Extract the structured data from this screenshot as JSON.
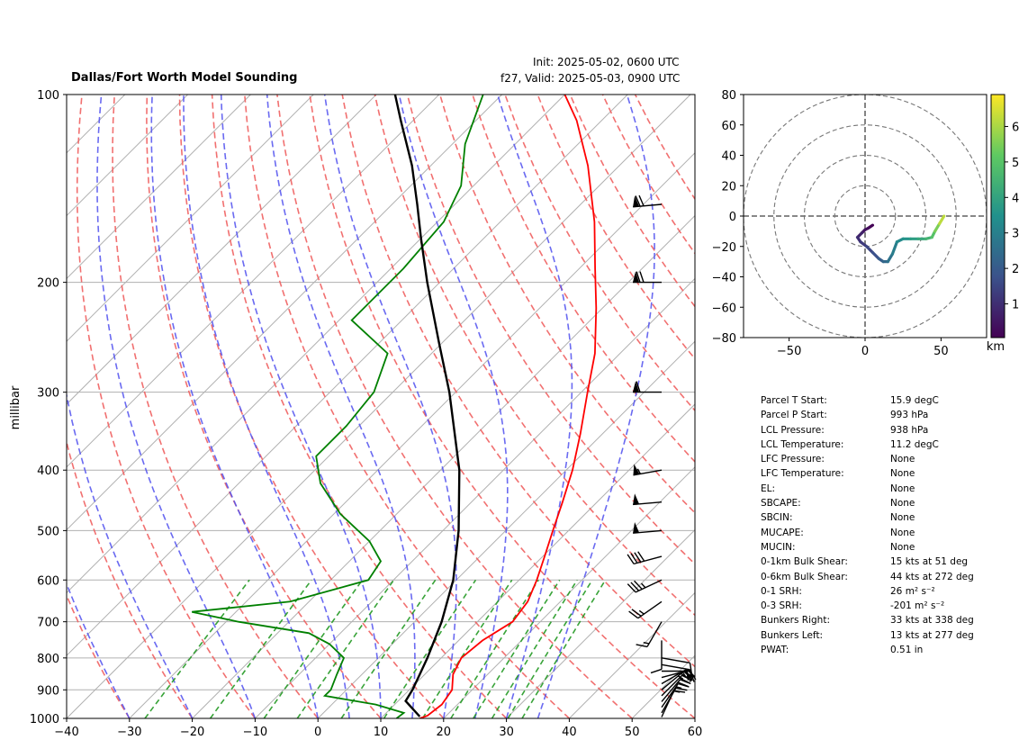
{
  "title": "Dallas/Fort Worth Model Sounding",
  "init": "Init: 2025-05-02, 0600 UTC",
  "valid": "f27, Valid: 2025-05-03, 0900 UTC",
  "params": [
    {
      "label": "Parcel T Start:",
      "value": "15.9 degC"
    },
    {
      "label": "Parcel P Start:",
      "value": "993 hPa"
    },
    {
      "label": "LCL Pressure:",
      "value": "938 hPa"
    },
    {
      "label": "LCL Temperature:",
      "value": "11.2 degC"
    },
    {
      "label": "LFC Pressure:",
      "value": "None"
    },
    {
      "label": "LFC Temperature:",
      "value": "None"
    },
    {
      "label": "EL:",
      "value": "None"
    },
    {
      "label": "SBCAPE:",
      "value": "None"
    },
    {
      "label": "SBCIN:",
      "value": "None"
    },
    {
      "label": "MUCAPE:",
      "value": "None"
    },
    {
      "label": "MUCIN:",
      "value": "None"
    },
    {
      "label": "0-1km Bulk Shear:",
      "value": "15 kts at 51 deg"
    },
    {
      "label": "0-6km Bulk Shear:",
      "value": "44 kts at 272 deg"
    },
    {
      "label": "0-1 SRH:",
      "value": "26 m² s⁻²"
    },
    {
      "label": "0-3 SRH:",
      "value": "-201 m² s⁻²"
    },
    {
      "label": "Bunkers Right:",
      "value": "33 kts at 338 deg"
    },
    {
      "label": "Bunkers Left:",
      "value": "13 kts at 277 deg"
    },
    {
      "label": "PWAT:",
      "value": "0.51 in"
    }
  ],
  "chart_data": [
    {
      "type": "line",
      "subtype": "skew-t",
      "ylabel": "millibar",
      "xlabel": "",
      "xlim": [
        -40,
        60
      ],
      "ylim": [
        1000,
        100
      ],
      "y_scale": "log",
      "xticks": [
        "−40",
        "−30",
        "−20",
        "−10",
        "0",
        "10",
        "20",
        "30",
        "40",
        "50",
        "60"
      ],
      "yticks": [
        "1000",
        "900",
        "800",
        "700",
        "600",
        "500",
        "400",
        "300",
        "200",
        "100"
      ],
      "grid": true,
      "series": [
        {
          "color": "#ff0000",
          "points": [
            [
              1000,
              16.2
            ],
            [
              990,
              17.0
            ],
            [
              950,
              17.5
            ],
            [
              900,
              16.8
            ],
            [
              850,
              14.5
            ],
            [
              800,
              13.2
            ],
            [
              750,
              13.8
            ],
            [
              700,
              15.6
            ],
            [
              650,
              14.8
            ],
            [
              600,
              12.8
            ],
            [
              550,
              10.3
            ],
            [
              500,
              7.5
            ],
            [
              450,
              4.5
            ],
            [
              400,
              1.0
            ],
            [
              350,
              -3.5
            ],
            [
              300,
              -9.0
            ],
            [
              260,
              -14.0
            ],
            [
              220,
              -21.0
            ],
            [
              190,
              -27.5
            ],
            [
              160,
              -35.0
            ],
            [
              130,
              -45.0
            ],
            [
              110,
              -54.0
            ],
            [
              100,
              -60.0
            ]
          ]
        },
        {
          "color": "#008000",
          "points": [
            [
              1000,
              12.5
            ],
            [
              980,
              12.8
            ],
            [
              950,
              7.0
            ],
            [
              920,
              -2.5
            ],
            [
              900,
              -2.5
            ],
            [
              850,
              -4.0
            ],
            [
              800,
              -5.5
            ],
            [
              760,
              -10.0
            ],
            [
              730,
              -15.0
            ],
            [
              700,
              -28.0
            ],
            [
              675,
              -37.0
            ],
            [
              650,
              -23.0
            ],
            [
              600,
              -14.0
            ],
            [
              560,
              -15.0
            ],
            [
              520,
              -20.0
            ],
            [
              470,
              -29.0
            ],
            [
              420,
              -37.0
            ],
            [
              380,
              -42.0
            ],
            [
              340,
              -42.0
            ],
            [
              300,
              -43.0
            ],
            [
              260,
              -47.0
            ],
            [
              230,
              -58.0
            ],
            [
              190,
              -58.0
            ],
            [
              160,
              -59.0
            ],
            [
              140,
              -62.0
            ],
            [
              120,
              -68.0
            ],
            [
              100,
              -73.0
            ]
          ]
        },
        {
          "color": "#000000",
          "points": [
            [
              993,
              15.9
            ],
            [
              938,
              11.2
            ],
            [
              900,
              10.5
            ],
            [
              850,
              9.2
            ],
            [
              800,
              7.8
            ],
            [
              700,
              4.3
            ],
            [
              600,
              -0.5
            ],
            [
              500,
              -7.5
            ],
            [
              400,
              -17.0
            ],
            [
              300,
              -31.0
            ],
            [
              250,
              -40.5
            ],
            [
              200,
              -52.0
            ],
            [
              170,
              -60.0
            ],
            [
              150,
              -66.0
            ],
            [
              130,
              -73.0
            ],
            [
              110,
              -82.0
            ],
            [
              100,
              -87.0
            ]
          ]
        }
      ],
      "wind_barbs": [
        {
          "p": 995,
          "speed": 10,
          "dir": 25
        },
        {
          "p": 980,
          "speed": 15,
          "dir": 30
        },
        {
          "p": 960,
          "speed": 15,
          "dir": 35
        },
        {
          "p": 940,
          "speed": 20,
          "dir": 40
        },
        {
          "p": 920,
          "speed": 20,
          "dir": 45
        },
        {
          "p": 900,
          "speed": 25,
          "dir": 50
        },
        {
          "p": 880,
          "speed": 25,
          "dir": 60
        },
        {
          "p": 860,
          "speed": 25,
          "dir": 75
        },
        {
          "p": 840,
          "speed": 20,
          "dir": 90
        },
        {
          "p": 820,
          "speed": 20,
          "dir": 100
        },
        {
          "p": 800,
          "speed": 10,
          "dir": 100
        },
        {
          "p": 750,
          "speed": 10,
          "dir": 180
        },
        {
          "p": 700,
          "speed": 15,
          "dir": 210
        },
        {
          "p": 650,
          "speed": 25,
          "dir": 235
        },
        {
          "p": 600,
          "speed": 35,
          "dir": 245
        },
        {
          "p": 550,
          "speed": 40,
          "dir": 255
        },
        {
          "p": 500,
          "speed": 50,
          "dir": 265
        },
        {
          "p": 450,
          "speed": 50,
          "dir": 265
        },
        {
          "p": 400,
          "speed": 55,
          "dir": 260
        },
        {
          "p": 300,
          "speed": 60,
          "dir": 270
        },
        {
          "p": 200,
          "speed": 70,
          "dir": 270
        },
        {
          "p": 150,
          "speed": 70,
          "dir": 265
        }
      ]
    },
    {
      "type": "line",
      "subtype": "hodograph",
      "xlim": [
        -80,
        80
      ],
      "ylim": [
        -80,
        80
      ],
      "xticks": [
        "−50",
        "0",
        "50"
      ],
      "yticks": [
        "80",
        "60",
        "40",
        "20",
        "0",
        "−20",
        "−40",
        "−60",
        "−80"
      ],
      "ring_radii": [
        20,
        40,
        60,
        80
      ],
      "points": [
        [
          5,
          -6
        ],
        [
          2,
          -8
        ],
        [
          0,
          -9
        ],
        [
          -2,
          -11
        ],
        [
          -5,
          -14
        ],
        [
          -3,
          -17
        ],
        [
          1,
          -20
        ],
        [
          5,
          -24
        ],
        [
          9,
          -28
        ],
        [
          12,
          -30
        ],
        [
          15,
          -30
        ],
        [
          18,
          -25
        ],
        [
          21,
          -17
        ],
        [
          25,
          -15
        ],
        [
          30,
          -15
        ],
        [
          35,
          -15
        ],
        [
          40,
          -15
        ],
        [
          44,
          -14
        ],
        [
          46,
          -10
        ],
        [
          49,
          -5
        ],
        [
          52,
          0
        ]
      ],
      "point_heights_km": [
        0.0,
        0.2,
        0.4,
        0.6,
        0.9,
        1.1,
        1.4,
        1.6,
        1.9,
        2.2,
        2.5,
        2.8,
        3.1,
        3.4,
        3.7,
        4.0,
        4.3,
        4.7,
        5.2,
        5.8,
        6.6
      ],
      "colorbar": {
        "label": "km",
        "ticks": [
          "1",
          "2",
          "3",
          "4",
          "5",
          "6"
        ],
        "range": [
          0.05,
          6.9
        ]
      }
    }
  ]
}
